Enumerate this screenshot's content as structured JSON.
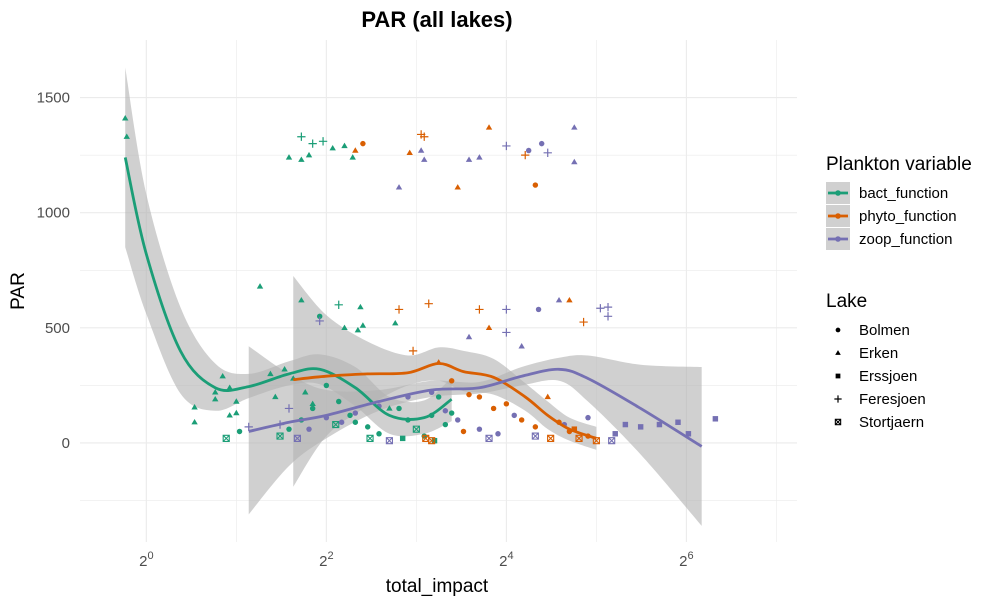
{
  "chart_data": {
    "type": "scatter",
    "title": "PAR (all lakes)",
    "xlabel": "total_impact",
    "ylabel": "PAR",
    "x_scale": "log2",
    "x_ticks": [
      {
        "value": 1,
        "base": "2",
        "exp": "0"
      },
      {
        "value": 4,
        "base": "2",
        "exp": "2"
      },
      {
        "value": 16,
        "base": "2",
        "exp": "4"
      },
      {
        "value": 64,
        "base": "2",
        "exp": "6"
      }
    ],
    "xlim": [
      0.6,
      150
    ],
    "y_ticks": [
      0,
      500,
      1000,
      1500
    ],
    "y_tick_labels": [
      "0",
      "500",
      "1000",
      "1500"
    ],
    "ylim": [
      -430,
      1750
    ],
    "grid": true,
    "legend_position": "right",
    "colors": {
      "bact_function": "#1b9e77",
      "phyto_function": "#d95f02",
      "zoop_function": "#7570b3",
      "band": "#b3b3b3",
      "grid": "#ebebeb"
    },
    "legends": {
      "color": {
        "title": "Plankton variable",
        "entries": [
          "bact_function",
          "phyto_function",
          "zoop_function"
        ]
      },
      "shape": {
        "title": "Lake",
        "entries": [
          {
            "label": "Bolmen",
            "shape": "circle"
          },
          {
            "label": "Erken",
            "shape": "triangle"
          },
          {
            "label": "Erssjoen",
            "shape": "square"
          },
          {
            "label": "Feresjoen",
            "shape": "plus"
          },
          {
            "label": "Stortjaern",
            "shape": "boxx"
          }
        ]
      }
    },
    "smooths": [
      {
        "series": "bact_function",
        "x": [
          0.85,
          1.0,
          1.3,
          1.7,
          2.2,
          3.0,
          3.8,
          5.0,
          6.5,
          8.5,
          10.5
        ],
        "y": [
          1240,
          820,
          400,
          240,
          245,
          300,
          320,
          240,
          120,
          110,
          190
        ],
        "lower": [
          850,
          560,
          215,
          140,
          195,
          250,
          255,
          160,
          40,
          40,
          95
        ],
        "upper": [
          1630,
          1080,
          590,
          345,
          300,
          355,
          385,
          330,
          200,
          185,
          285
        ]
      },
      {
        "series": "phyto_function",
        "x": [
          3.1,
          4.0,
          5.5,
          7.5,
          9.5,
          11.5,
          14.5,
          18.5,
          22.0,
          26.0,
          32.0
        ],
        "y": [
          275,
          290,
          300,
          305,
          345,
          310,
          285,
          200,
          120,
          60,
          20
        ],
        "lower": [
          -190,
          30,
          160,
          250,
          270,
          225,
          210,
          140,
          60,
          10,
          -30
        ],
        "upper": [
          725,
          555,
          440,
          380,
          415,
          400,
          365,
          260,
          180,
          110,
          70
        ]
      },
      {
        "series": "zoop_function",
        "x": [
          2.2,
          3.0,
          4.0,
          6.0,
          9.0,
          13.0,
          18.0,
          24.0,
          30.0,
          45.0,
          72.0
        ],
        "y": [
          50,
          90,
          120,
          180,
          230,
          240,
          290,
          320,
          280,
          150,
          -15
        ],
        "lower": [
          -310,
          -100,
          20,
          140,
          200,
          215,
          250,
          270,
          180,
          -50,
          -360
        ],
        "upper": [
          420,
          300,
          230,
          230,
          270,
          265,
          330,
          370,
          380,
          340,
          330
        ]
      }
    ],
    "series": [
      {
        "name": "bact_function",
        "points": [
          {
            "x": 0.85,
            "y": 1410,
            "lake": "Erken"
          },
          {
            "x": 0.86,
            "y": 1330,
            "lake": "Erken"
          },
          {
            "x": 1.45,
            "y": 155,
            "lake": "Erken"
          },
          {
            "x": 1.45,
            "y": 90,
            "lake": "Erken"
          },
          {
            "x": 1.7,
            "y": 220,
            "lake": "Erken"
          },
          {
            "x": 1.7,
            "y": 190,
            "lake": "Erken"
          },
          {
            "x": 1.8,
            "y": 290,
            "lake": "Erken"
          },
          {
            "x": 1.9,
            "y": 240,
            "lake": "Erken"
          },
          {
            "x": 1.9,
            "y": 120,
            "lake": "Erken"
          },
          {
            "x": 2.0,
            "y": 130,
            "lake": "Erken"
          },
          {
            "x": 2.0,
            "y": 180,
            "lake": "Erken"
          },
          {
            "x": 1.85,
            "y": 20,
            "lake": "Stortjaern"
          },
          {
            "x": 2.05,
            "y": 50,
            "lake": "Bolmen"
          },
          {
            "x": 2.4,
            "y": 680,
            "lake": "Erken"
          },
          {
            "x": 2.6,
            "y": 300,
            "lake": "Erken"
          },
          {
            "x": 2.7,
            "y": 200,
            "lake": "Erken"
          },
          {
            "x": 2.9,
            "y": 320,
            "lake": "Erken"
          },
          {
            "x": 3.0,
            "y": 1240,
            "lake": "Erken"
          },
          {
            "x": 3.3,
            "y": 1230,
            "lake": "Erken"
          },
          {
            "x": 3.3,
            "y": 620,
            "lake": "Erken"
          },
          {
            "x": 3.1,
            "y": 280,
            "lake": "Erken"
          },
          {
            "x": 3.4,
            "y": 220,
            "lake": "Erken"
          },
          {
            "x": 3.6,
            "y": 170,
            "lake": "Erken"
          },
          {
            "x": 3.3,
            "y": 1330,
            "lake": "Feresjoen"
          },
          {
            "x": 3.6,
            "y": 1300,
            "lake": "Feresjoen"
          },
          {
            "x": 3.5,
            "y": 1250,
            "lake": "Erken"
          },
          {
            "x": 3.9,
            "y": 1310,
            "lake": "Feresjoen"
          },
          {
            "x": 3.8,
            "y": 550,
            "lake": "Bolmen"
          },
          {
            "x": 2.8,
            "y": 30,
            "lake": "Stortjaern"
          },
          {
            "x": 3.0,
            "y": 60,
            "lake": "Bolmen"
          },
          {
            "x": 3.3,
            "y": 100,
            "lake": "Bolmen"
          },
          {
            "x": 3.6,
            "y": 150,
            "lake": "Bolmen"
          },
          {
            "x": 4.2,
            "y": 1280,
            "lake": "Erken"
          },
          {
            "x": 4.6,
            "y": 1290,
            "lake": "Erken"
          },
          {
            "x": 4.9,
            "y": 1240,
            "lake": "Erken"
          },
          {
            "x": 4.4,
            "y": 600,
            "lake": "Feresjoen"
          },
          {
            "x": 5.2,
            "y": 590,
            "lake": "Erken"
          },
          {
            "x": 4.6,
            "y": 500,
            "lake": "Erken"
          },
          {
            "x": 5.1,
            "y": 490,
            "lake": "Erken"
          },
          {
            "x": 5.3,
            "y": 510,
            "lake": "Erken"
          },
          {
            "x": 4.0,
            "y": 250,
            "lake": "Bolmen"
          },
          {
            "x": 4.4,
            "y": 180,
            "lake": "Bolmen"
          },
          {
            "x": 4.8,
            "y": 120,
            "lake": "Bolmen"
          },
          {
            "x": 5.0,
            "y": 90,
            "lake": "Bolmen"
          },
          {
            "x": 5.5,
            "y": 70,
            "lake": "Bolmen"
          },
          {
            "x": 6.0,
            "y": 40,
            "lake": "Bolmen"
          },
          {
            "x": 4.3,
            "y": 80,
            "lake": "Stortjaern"
          },
          {
            "x": 5.6,
            "y": 20,
            "lake": "Stortjaern"
          },
          {
            "x": 6.5,
            "y": 150,
            "lake": "Erken"
          },
          {
            "x": 6.8,
            "y": 520,
            "lake": "Erken"
          },
          {
            "x": 7.0,
            "y": 150,
            "lake": "Bolmen"
          },
          {
            "x": 7.5,
            "y": 100,
            "lake": "Bolmen"
          },
          {
            "x": 8.0,
            "y": 60,
            "lake": "Stortjaern"
          },
          {
            "x": 8.5,
            "y": 30,
            "lake": "Bolmen"
          },
          {
            "x": 9.0,
            "y": 120,
            "lake": "Bolmen"
          },
          {
            "x": 9.5,
            "y": 200,
            "lake": "Bolmen"
          },
          {
            "x": 10.0,
            "y": 80,
            "lake": "Bolmen"
          },
          {
            "x": 10.5,
            "y": 130,
            "lake": "Bolmen"
          },
          {
            "x": 7.2,
            "y": 20,
            "lake": "Erssjoen"
          },
          {
            "x": 9.2,
            "y": 10,
            "lake": "Erssjoen"
          }
        ]
      },
      {
        "name": "phyto_function",
        "points": [
          {
            "x": 5.0,
            "y": 1270,
            "lake": "Erken"
          },
          {
            "x": 5.3,
            "y": 1300,
            "lake": "Bolmen"
          },
          {
            "x": 7.6,
            "y": 1260,
            "lake": "Erken"
          },
          {
            "x": 8.3,
            "y": 1340,
            "lake": "Feresjoen"
          },
          {
            "x": 8.5,
            "y": 1330,
            "lake": "Feresjoen"
          },
          {
            "x": 11.0,
            "y": 1110,
            "lake": "Erken"
          },
          {
            "x": 14.0,
            "y": 1370,
            "lake": "Erken"
          },
          {
            "x": 18.5,
            "y": 1250,
            "lake": "Feresjoen"
          },
          {
            "x": 20.0,
            "y": 1120,
            "lake": "Bolmen"
          },
          {
            "x": 7.0,
            "y": 580,
            "lake": "Feresjoen"
          },
          {
            "x": 8.8,
            "y": 605,
            "lake": "Feresjoen"
          },
          {
            "x": 13.0,
            "y": 580,
            "lake": "Feresjoen"
          },
          {
            "x": 14.0,
            "y": 500,
            "lake": "Erken"
          },
          {
            "x": 26.0,
            "y": 620,
            "lake": "Erken"
          },
          {
            "x": 29.0,
            "y": 525,
            "lake": "Feresjoen"
          },
          {
            "x": 7.8,
            "y": 400,
            "lake": "Feresjoen"
          },
          {
            "x": 9.5,
            "y": 350,
            "lake": "Erken"
          },
          {
            "x": 10.5,
            "y": 270,
            "lake": "Bolmen"
          },
          {
            "x": 12.0,
            "y": 210,
            "lake": "Bolmen"
          },
          {
            "x": 13.0,
            "y": 200,
            "lake": "Bolmen"
          },
          {
            "x": 14.5,
            "y": 150,
            "lake": "Bolmen"
          },
          {
            "x": 16.0,
            "y": 170,
            "lake": "Bolmen"
          },
          {
            "x": 18.0,
            "y": 100,
            "lake": "Bolmen"
          },
          {
            "x": 20.0,
            "y": 70,
            "lake": "Bolmen"
          },
          {
            "x": 22.0,
            "y": 200,
            "lake": "Erken"
          },
          {
            "x": 24.0,
            "y": 90,
            "lake": "Bolmen"
          },
          {
            "x": 26.0,
            "y": 50,
            "lake": "Bolmen"
          },
          {
            "x": 28.0,
            "y": 20,
            "lake": "Stortjaern"
          },
          {
            "x": 30.0,
            "y": 30,
            "lake": "Bolmen"
          },
          {
            "x": 32.0,
            "y": 10,
            "lake": "Stortjaern"
          },
          {
            "x": 8.6,
            "y": 20,
            "lake": "Stortjaern"
          },
          {
            "x": 9.0,
            "y": 10,
            "lake": "Stortjaern"
          },
          {
            "x": 11.5,
            "y": 50,
            "lake": "Bolmen"
          },
          {
            "x": 22.5,
            "y": 20,
            "lake": "Stortjaern"
          },
          {
            "x": 27.0,
            "y": 60,
            "lake": "Erssjoen"
          }
        ]
      },
      {
        "name": "zoop_function",
        "points": [
          {
            "x": 8.3,
            "y": 1270,
            "lake": "Erken"
          },
          {
            "x": 8.5,
            "y": 1230,
            "lake": "Erken"
          },
          {
            "x": 7.0,
            "y": 1110,
            "lake": "Erken"
          },
          {
            "x": 12.0,
            "y": 1230,
            "lake": "Erken"
          },
          {
            "x": 13.0,
            "y": 1240,
            "lake": "Erken"
          },
          {
            "x": 16.0,
            "y": 1290,
            "lake": "Feresjoen"
          },
          {
            "x": 19.0,
            "y": 1270,
            "lake": "Bolmen"
          },
          {
            "x": 21.0,
            "y": 1300,
            "lake": "Bolmen"
          },
          {
            "x": 22.0,
            "y": 1260,
            "lake": "Feresjoen"
          },
          {
            "x": 27.0,
            "y": 1220,
            "lake": "Erken"
          },
          {
            "x": 27.0,
            "y": 1370,
            "lake": "Erken"
          },
          {
            "x": 3.8,
            "y": 530,
            "lake": "Feresjoen"
          },
          {
            "x": 12.0,
            "y": 460,
            "lake": "Erken"
          },
          {
            "x": 16.0,
            "y": 580,
            "lake": "Feresjoen"
          },
          {
            "x": 16.0,
            "y": 480,
            "lake": "Feresjoen"
          },
          {
            "x": 20.5,
            "y": 580,
            "lake": "Bolmen"
          },
          {
            "x": 24.0,
            "y": 620,
            "lake": "Erken"
          },
          {
            "x": 33.0,
            "y": 585,
            "lake": "Feresjoen"
          },
          {
            "x": 35.0,
            "y": 590,
            "lake": "Feresjoen"
          },
          {
            "x": 35.0,
            "y": 550,
            "lake": "Feresjoen"
          },
          {
            "x": 18.0,
            "y": 420,
            "lake": "Erken"
          },
          {
            "x": 2.2,
            "y": 70,
            "lake": "Feresjoen"
          },
          {
            "x": 2.8,
            "y": 80,
            "lake": "Feresjoen"
          },
          {
            "x": 3.0,
            "y": 150,
            "lake": "Feresjoen"
          },
          {
            "x": 3.2,
            "y": 20,
            "lake": "Stortjaern"
          },
          {
            "x": 3.5,
            "y": 60,
            "lake": "Bolmen"
          },
          {
            "x": 4.0,
            "y": 110,
            "lake": "Bolmen"
          },
          {
            "x": 4.5,
            "y": 90,
            "lake": "Bolmen"
          },
          {
            "x": 5.0,
            "y": 130,
            "lake": "Bolmen"
          },
          {
            "x": 6.0,
            "y": 160,
            "lake": "Bolmen"
          },
          {
            "x": 7.5,
            "y": 200,
            "lake": "Bolmen"
          },
          {
            "x": 9.0,
            "y": 220,
            "lake": "Bolmen"
          },
          {
            "x": 10.0,
            "y": 140,
            "lake": "Bolmen"
          },
          {
            "x": 11.0,
            "y": 100,
            "lake": "Bolmen"
          },
          {
            "x": 13.0,
            "y": 60,
            "lake": "Bolmen"
          },
          {
            "x": 15.0,
            "y": 40,
            "lake": "Bolmen"
          },
          {
            "x": 17.0,
            "y": 120,
            "lake": "Bolmen"
          },
          {
            "x": 20.0,
            "y": 30,
            "lake": "Stortjaern"
          },
          {
            "x": 25.0,
            "y": 80,
            "lake": "Bolmen"
          },
          {
            "x": 30.0,
            "y": 110,
            "lake": "Bolmen"
          },
          {
            "x": 36.0,
            "y": 10,
            "lake": "Stortjaern"
          },
          {
            "x": 37.0,
            "y": 40,
            "lake": "Erssjoen"
          },
          {
            "x": 40.0,
            "y": 80,
            "lake": "Erssjoen"
          },
          {
            "x": 45.0,
            "y": 70,
            "lake": "Erssjoen"
          },
          {
            "x": 52.0,
            "y": 80,
            "lake": "Erssjoen"
          },
          {
            "x": 60.0,
            "y": 90,
            "lake": "Erssjoen"
          },
          {
            "x": 65.0,
            "y": 40,
            "lake": "Erssjoen"
          },
          {
            "x": 80.0,
            "y": 105,
            "lake": "Erssjoen"
          },
          {
            "x": 6.5,
            "y": 10,
            "lake": "Stortjaern"
          },
          {
            "x": 14.0,
            "y": 20,
            "lake": "Stortjaern"
          }
        ]
      }
    ]
  }
}
